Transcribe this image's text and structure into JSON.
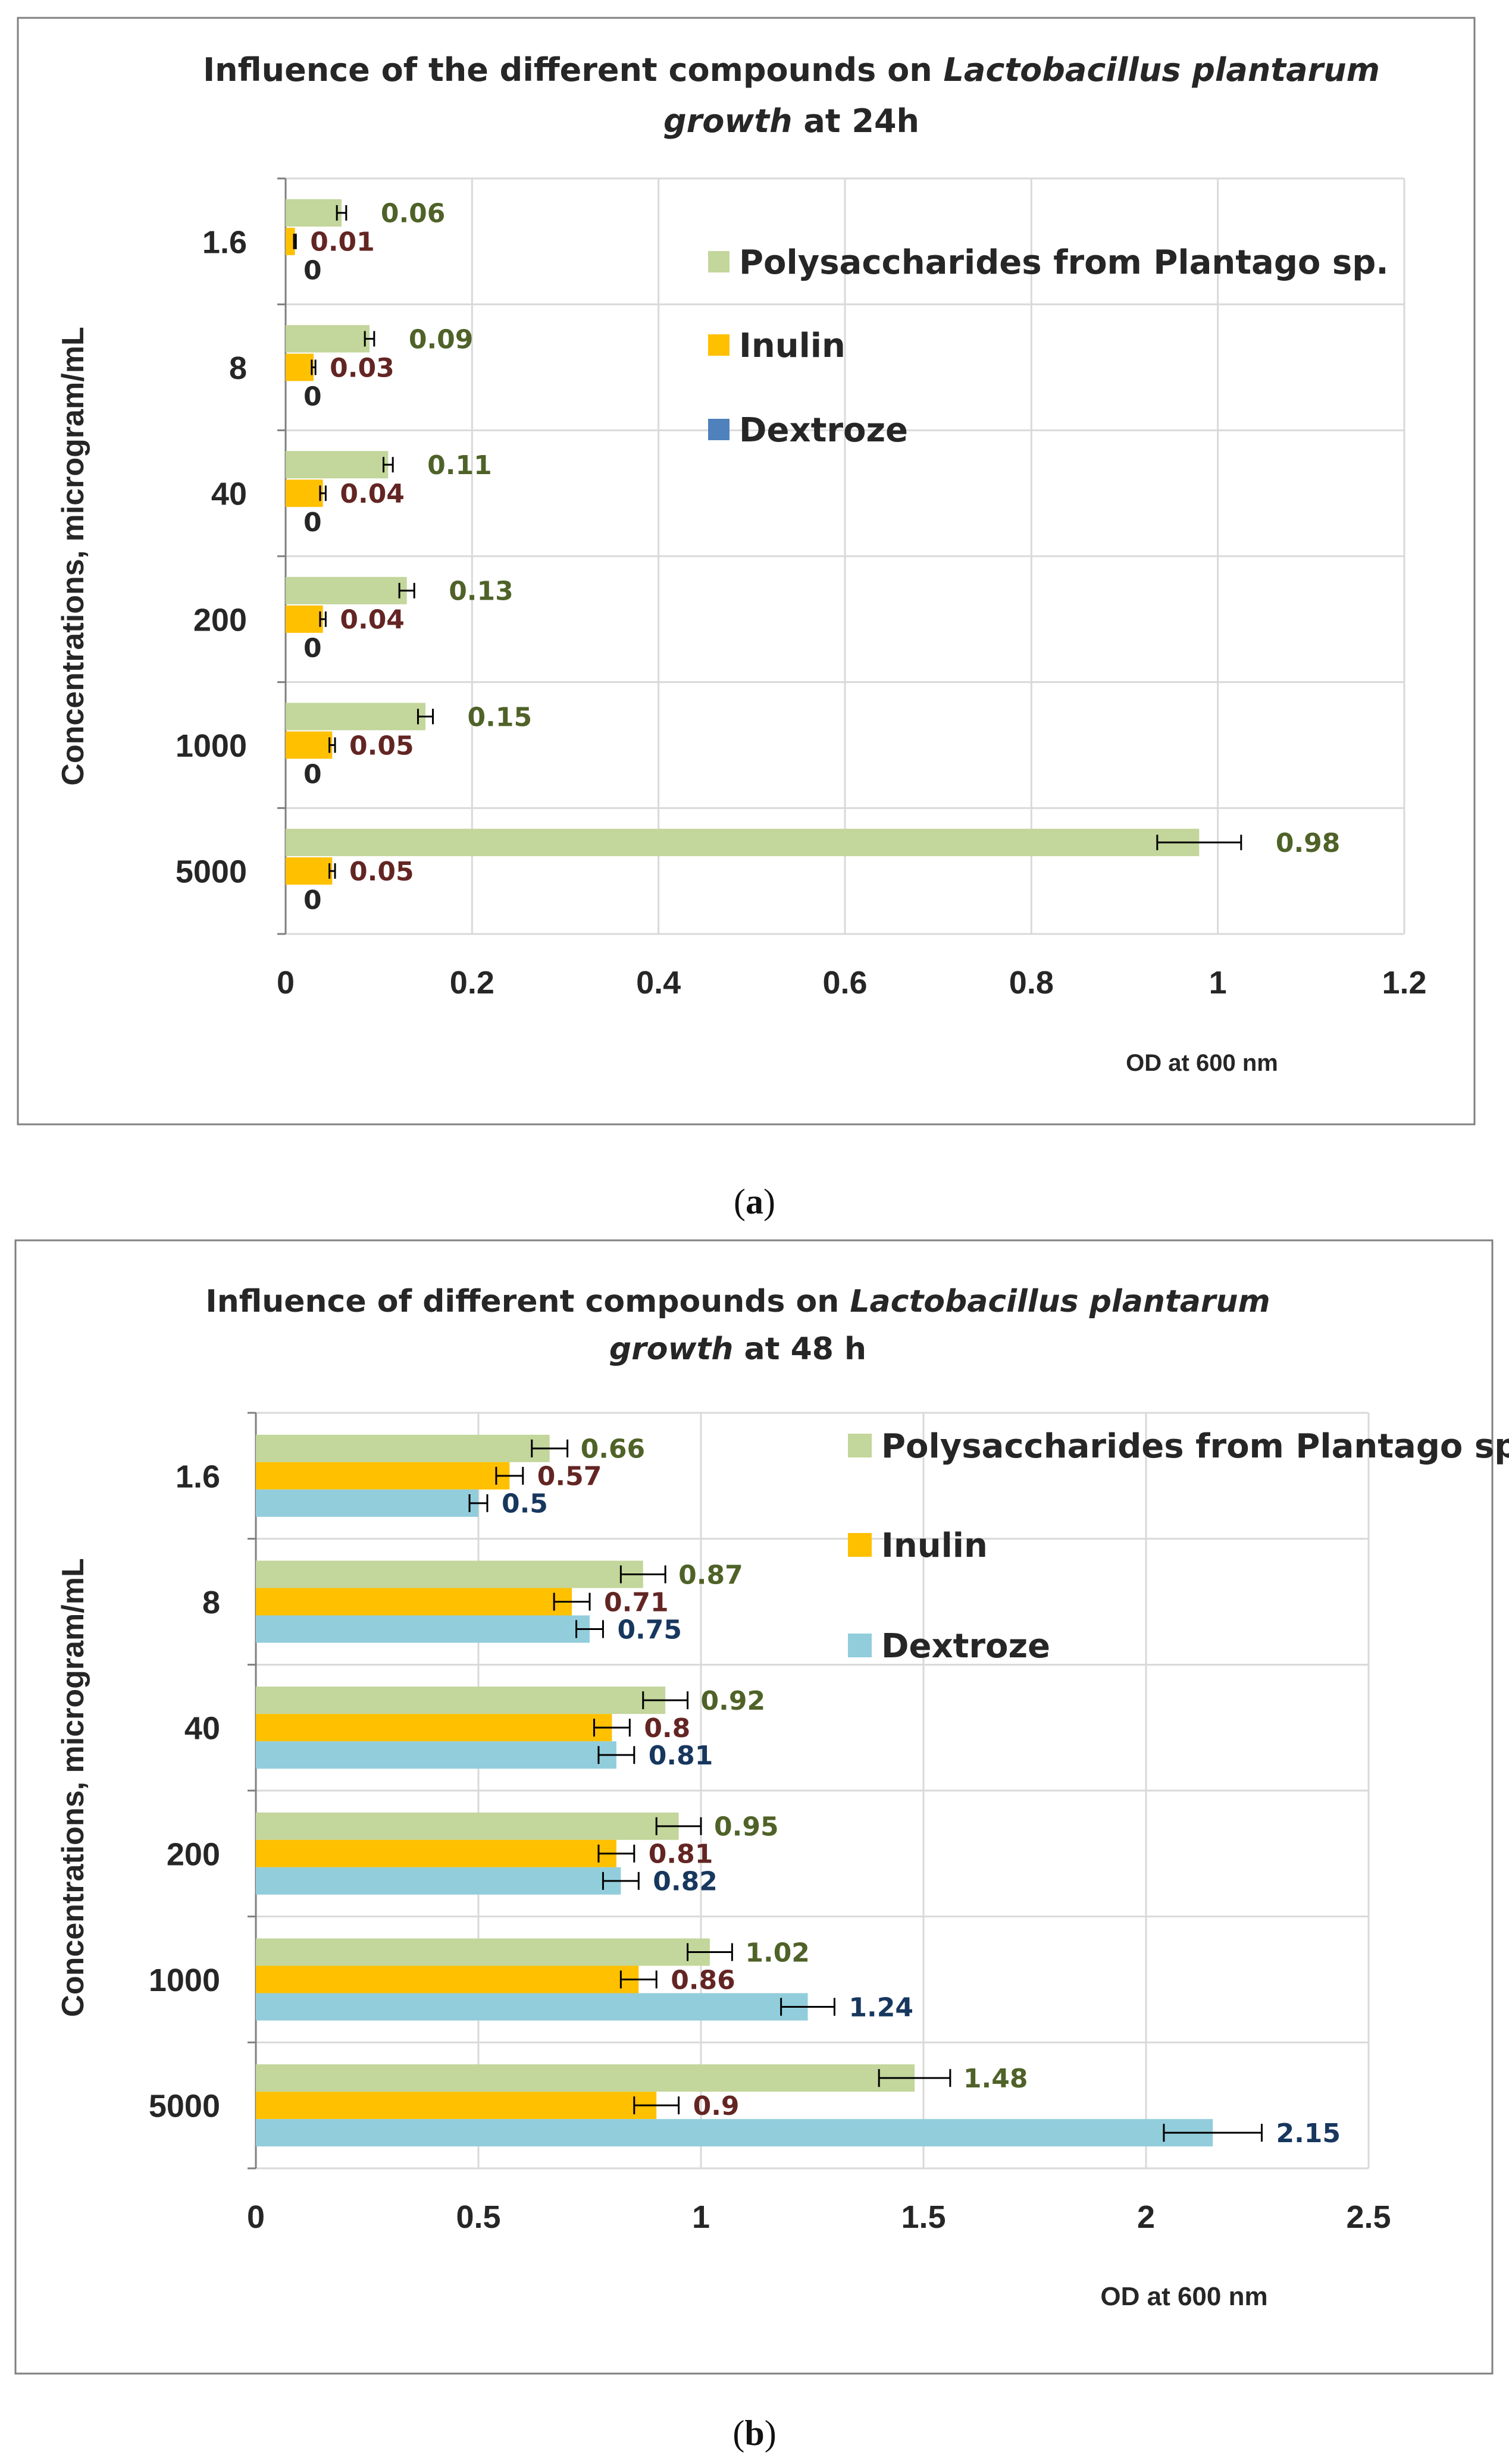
{
  "chart_data": [
    {
      "type": "bar",
      "orientation": "horizontal",
      "title_parts": [
        {
          "text": "Influence of the different compounds on ",
          "italic": false,
          "line": 1
        },
        {
          "text": "Lactobacillus plantarum",
          "italic": true,
          "line": 1
        },
        {
          "text": "growth",
          "italic": true,
          "line": 2
        },
        {
          "text": " at 24h",
          "italic": false,
          "line": 2
        }
      ],
      "categories": [
        "1.6",
        "8",
        "40",
        "200",
        "1000",
        "5000"
      ],
      "ylabel": "Concentrations, microgram/mL",
      "xlabel": "OD at  600 nm",
      "xlim": [
        0,
        1.2
      ],
      "xticks": [
        "0",
        "0.2",
        "0.4",
        "0.6",
        "0.8",
        "1",
        "1.2"
      ],
      "series": [
        {
          "name": "Polysaccharides from Plantago sp.",
          "color": "#c3d69b",
          "label_color": "#4f6228",
          "values": [
            0.06,
            0.09,
            0.11,
            0.13,
            0.15,
            0.98
          ],
          "labels": [
            "0.06",
            "0.09",
            "0.11",
            "0.13",
            "0.15",
            "0.98"
          ],
          "errors": [
            0.005,
            0.005,
            0.005,
            0.008,
            0.008,
            0.045
          ]
        },
        {
          "name": "Inulin",
          "color": "#ffc000",
          "label_color": "#632523",
          "values": [
            0.01,
            0.03,
            0.04,
            0.04,
            0.05,
            0.05
          ],
          "labels": [
            "0.01",
            "0.03",
            "0.04",
            "0.04",
            "0.05",
            "0.05"
          ],
          "errors": [
            0.001,
            0.002,
            0.003,
            0.003,
            0.003,
            0.003
          ]
        },
        {
          "name": "Dextroze",
          "color": "#4f81bd",
          "label_color": "#262626",
          "values": [
            0,
            0,
            0,
            0,
            0,
            0
          ],
          "labels": [
            "0",
            "0",
            "0",
            "0",
            "0",
            "0"
          ],
          "errors": [
            0,
            0,
            0,
            0,
            0,
            0
          ]
        }
      ],
      "legend_order": [
        0,
        1,
        2
      ],
      "legend_position": "top-right",
      "grid": "vertical",
      "caption_letter": "a"
    },
    {
      "type": "bar",
      "orientation": "horizontal",
      "title_parts": [
        {
          "text": "Influence of different compounds on ",
          "italic": false,
          "line": 1
        },
        {
          "text": "Lactobacillus plantarum",
          "italic": true,
          "line": 1
        },
        {
          "text": "growth",
          "italic": true,
          "line": 2
        },
        {
          "text": "  at 48 h",
          "italic": false,
          "line": 2
        }
      ],
      "categories": [
        "1.6",
        "8",
        "40",
        "200",
        "1000",
        "5000"
      ],
      "ylabel": "Concentrations, microgram/mL",
      "xlabel": "OD at   600 nm",
      "xlim": [
        0,
        2.5
      ],
      "xticks": [
        "0",
        "0.5",
        "1",
        "1.5",
        "2",
        "2.5"
      ],
      "series": [
        {
          "name": "Polysaccharides from Plantago sp.",
          "color": "#c3d69b",
          "label_color": "#4f6228",
          "values": [
            0.66,
            0.87,
            0.92,
            0.95,
            1.02,
            1.48
          ],
          "labels": [
            "0.66",
            "0.87",
            "0.92",
            "0.95",
            "1.02",
            "1.48"
          ],
          "errors": [
            0.04,
            0.05,
            0.05,
            0.05,
            0.05,
            0.08
          ]
        },
        {
          "name": "Inulin",
          "color": "#ffc000",
          "label_color": "#632523",
          "values": [
            0.57,
            0.71,
            0.8,
            0.81,
            0.86,
            0.9
          ],
          "labels": [
            "0.57",
            "0.71",
            "0.8",
            "0.81",
            "0.86",
            "0.9"
          ],
          "errors": [
            0.03,
            0.04,
            0.04,
            0.04,
            0.04,
            0.05
          ]
        },
        {
          "name": "Dextroze",
          "color": "#92cddc",
          "label_color": "#17375e",
          "values": [
            0.5,
            0.75,
            0.81,
            0.82,
            1.24,
            2.15
          ],
          "labels": [
            "0.5",
            "0.75",
            "0.81",
            "0.82",
            "1.24",
            "2.15"
          ],
          "errors": [
            0.02,
            0.03,
            0.04,
            0.04,
            0.06,
            0.11
          ]
        }
      ],
      "legend_order": [
        0,
        1,
        2
      ],
      "legend_position": "top-right",
      "grid": "vertical",
      "caption_letter": "b"
    }
  ]
}
